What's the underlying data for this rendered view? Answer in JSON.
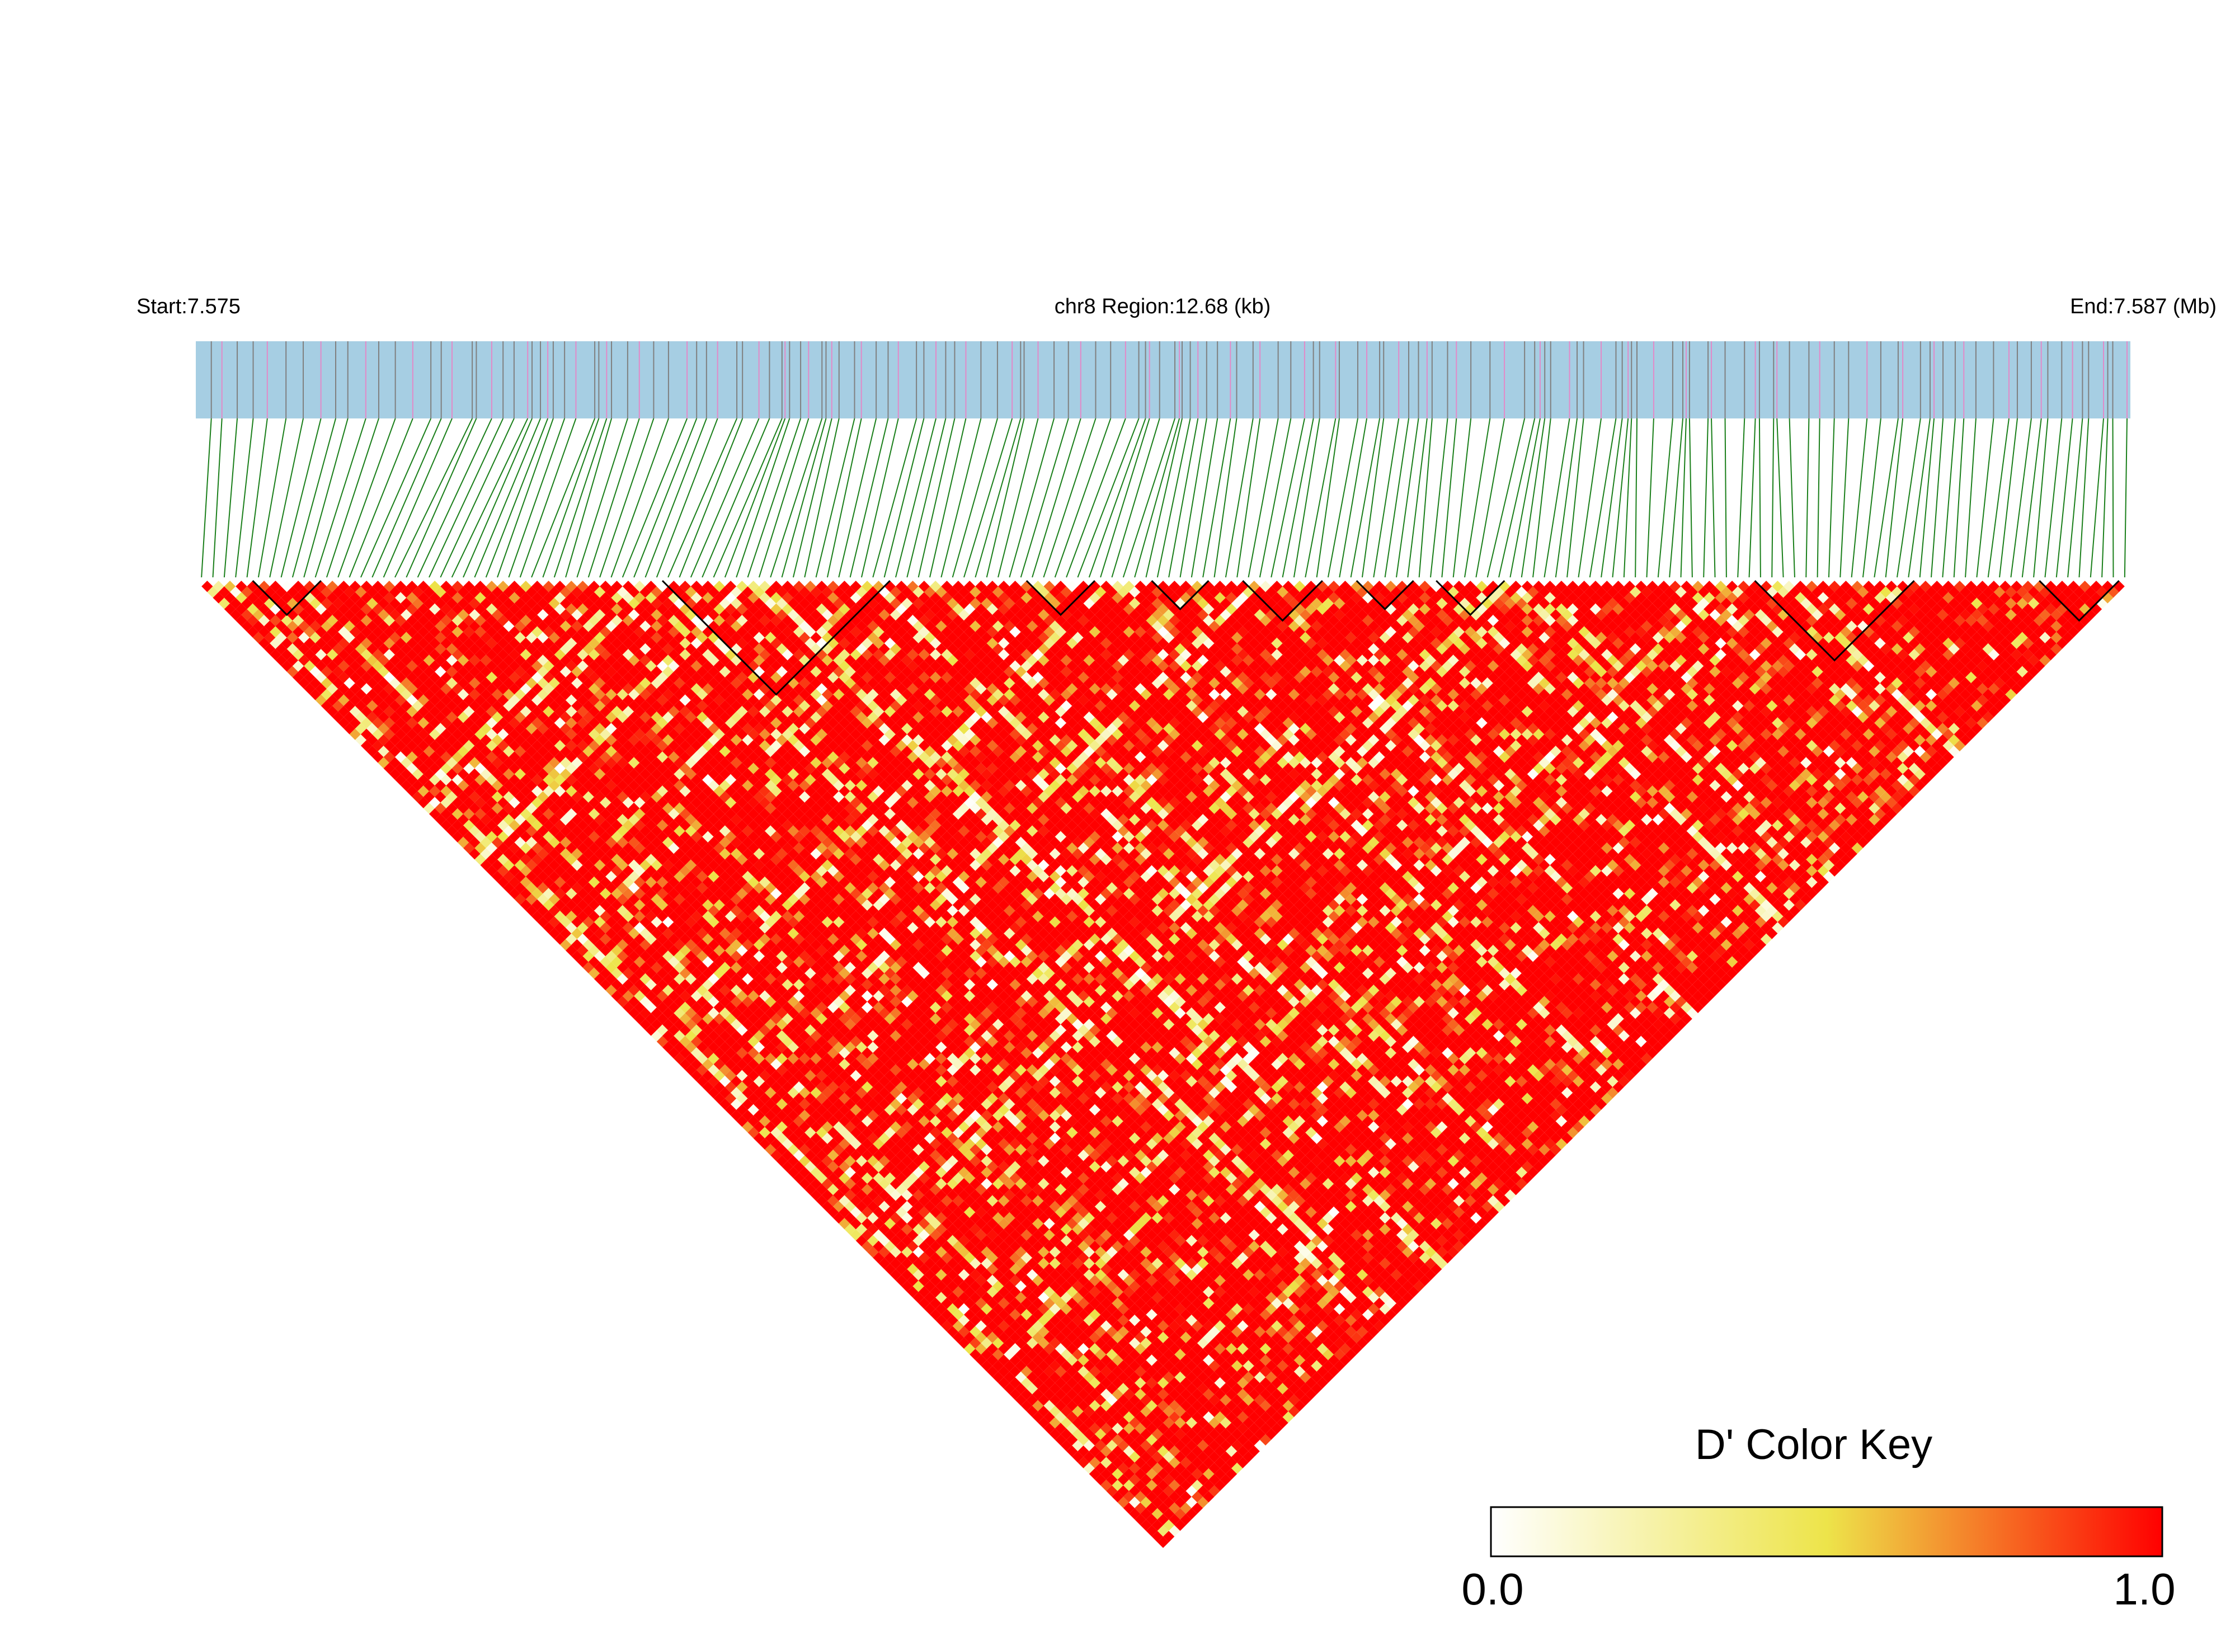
{
  "header": {
    "start_label": "Start:7.575",
    "region_label": "chr8 Region:12.68 (kb)",
    "end_label": "End:7.587 (Mb)"
  },
  "colors": {
    "region_bar": "#a6cee3",
    "snp_tick_gray": "#808080",
    "snp_tick_pink": "#e28ac8",
    "connector": "#1a7f1a",
    "block_outline": "#000000",
    "ld_low": "#ffffff",
    "ld_mid": "#ede44a",
    "ld_high": "#ff0000"
  },
  "chart_data": {
    "type": "heatmap",
    "subtype": "LD triangle (D')",
    "chromosome": "chr8",
    "region_start_mb": 7.575,
    "region_end_mb": 7.587,
    "region_length_kb": 12.68,
    "n_snps": 170,
    "value_range": [
      0,
      1
    ],
    "haplotype_blocks": [
      {
        "first_snp": 5,
        "last_snp": 10
      },
      {
        "first_snp": 41,
        "last_snp": 60
      },
      {
        "first_snp": 73,
        "last_snp": 78
      },
      {
        "first_snp": 84,
        "last_snp": 88
      },
      {
        "first_snp": 92,
        "last_snp": 98
      },
      {
        "first_snp": 102,
        "last_snp": 106
      },
      {
        "first_snp": 109,
        "last_snp": 114
      },
      {
        "first_snp": 137,
        "last_snp": 150
      },
      {
        "first_snp": 162,
        "last_snp": 168
      }
    ],
    "legend": {
      "title": "D' Color Key",
      "min_label": "0.0",
      "max_label": "1.0",
      "position": "bottom-right"
    }
  }
}
